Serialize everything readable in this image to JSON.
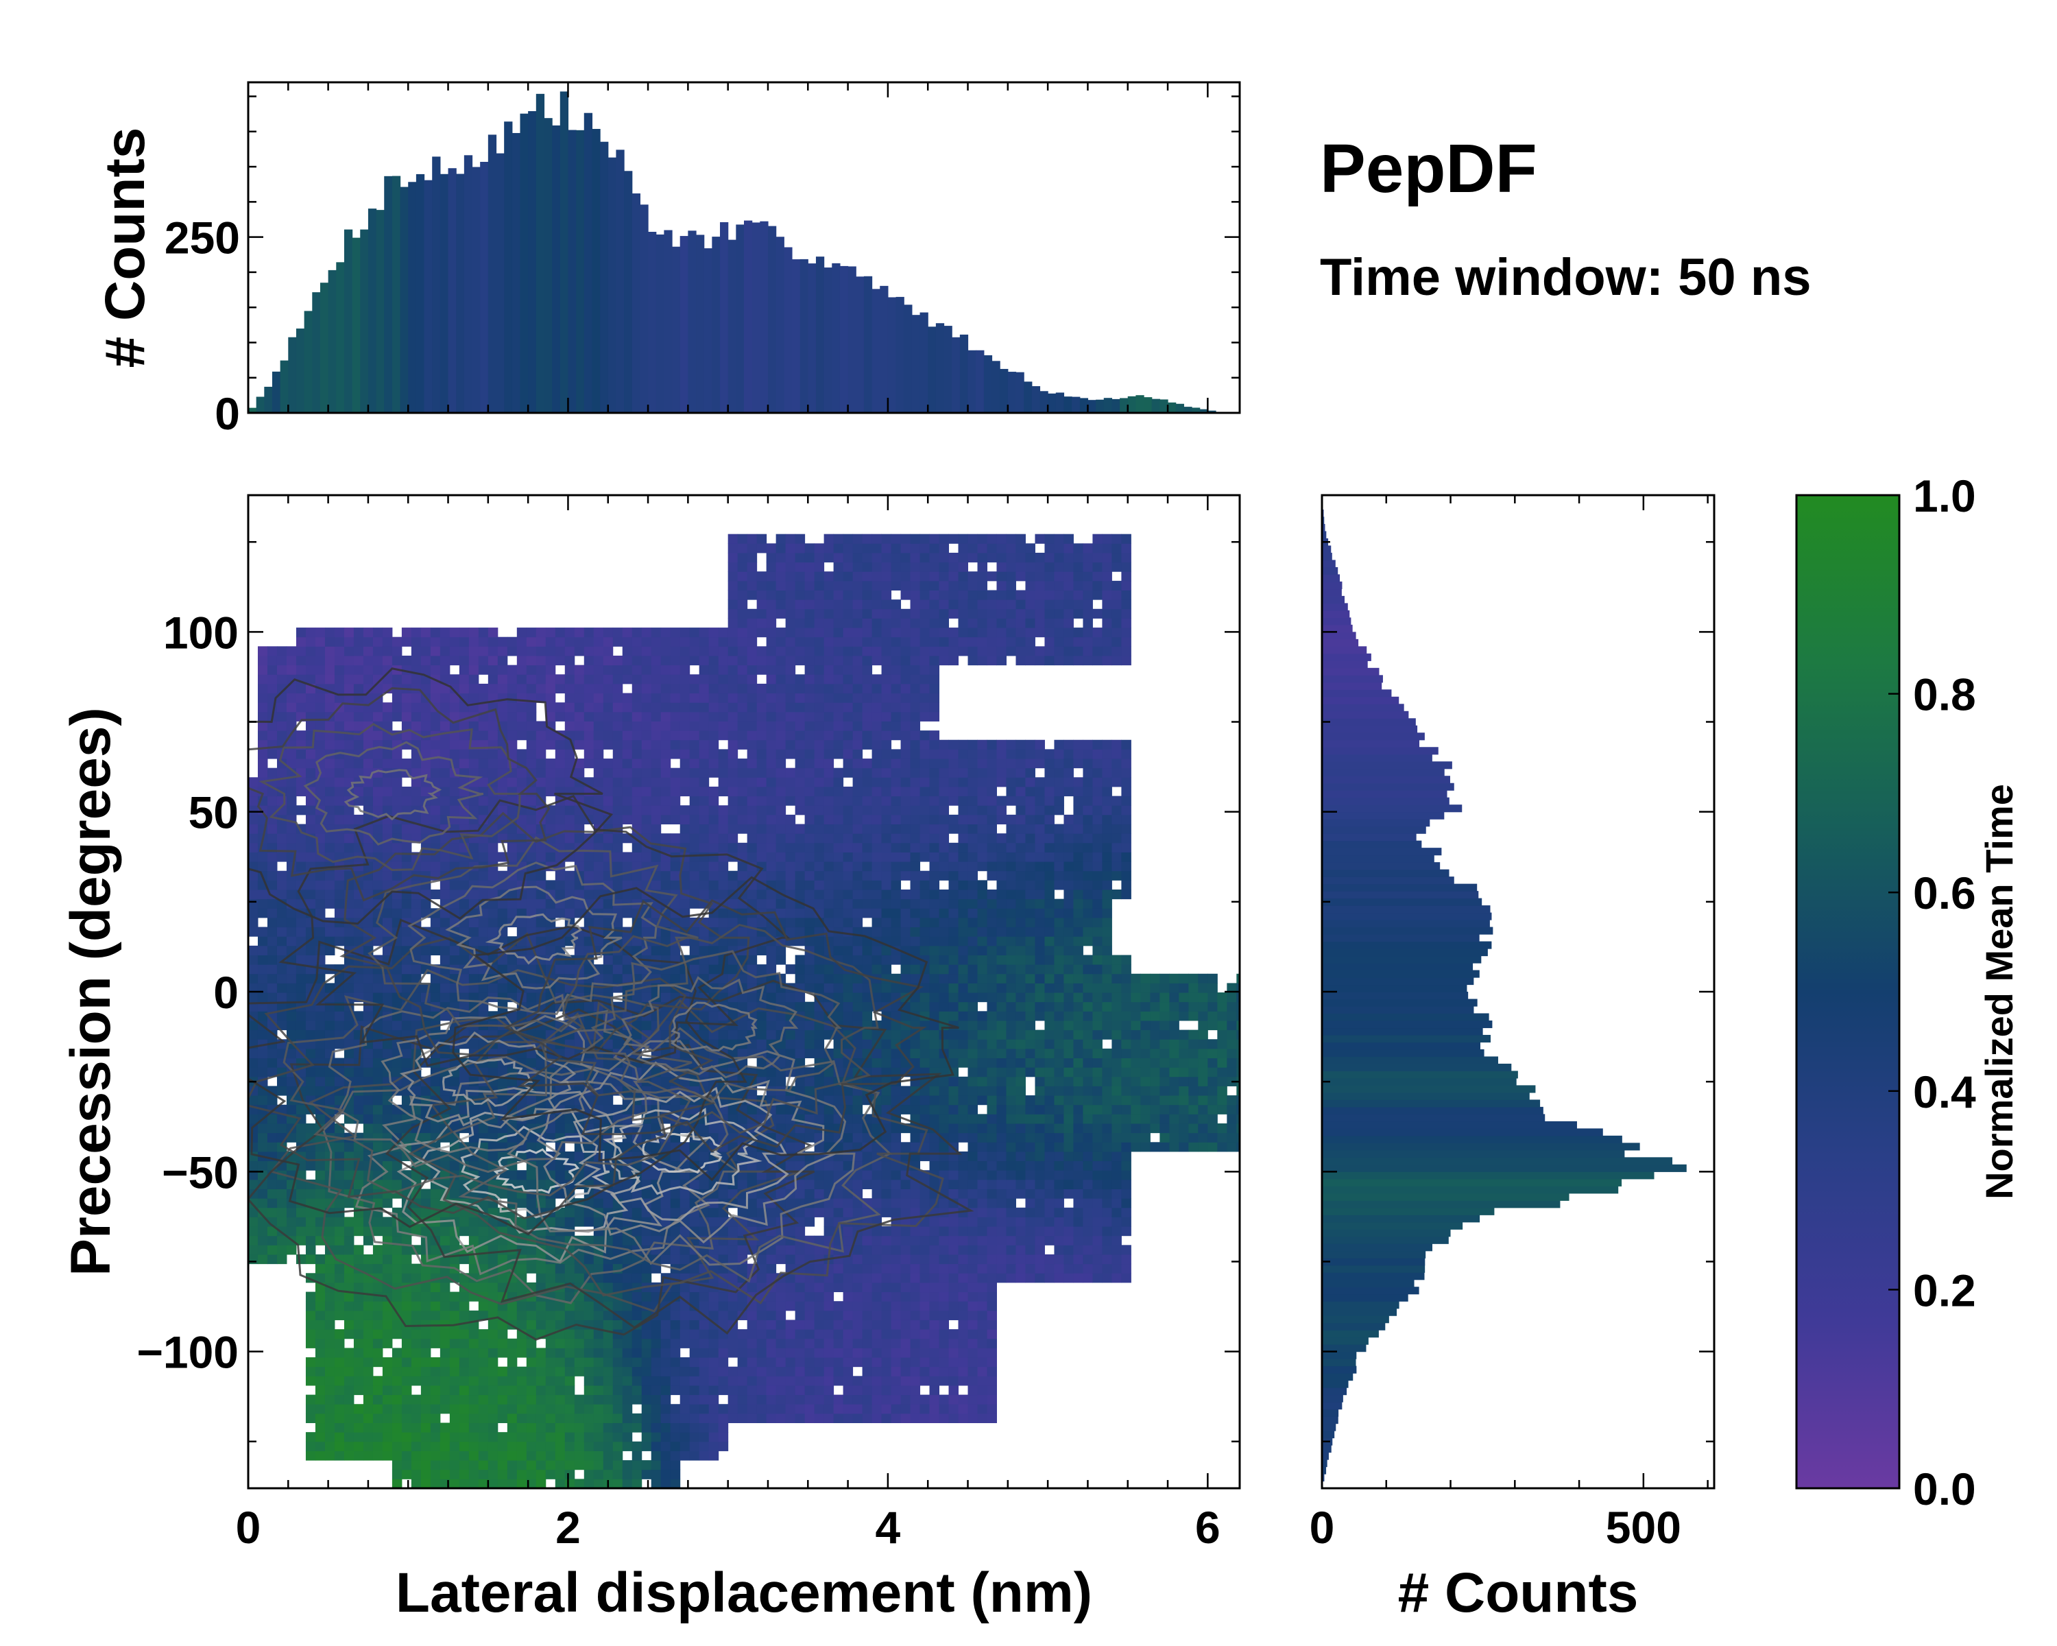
{
  "chart_data": {
    "type": "heatmap",
    "title": "PepDF",
    "subtitle": "Time window: 50 ns",
    "main": {
      "xlabel": "Lateral displacement (nm)",
      "ylabel": "Precession (degrees)",
      "xlim": [
        0,
        6.2
      ],
      "ylim": [
        -138,
        138
      ],
      "xticks": [
        0,
        2,
        4,
        6
      ],
      "xtick_labels": [
        "0",
        "2",
        "4",
        "6"
      ],
      "yticks": [
        -100,
        -50,
        0,
        50,
        100
      ],
      "ytick_labels": [
        "−100",
        "−50",
        "0",
        "50",
        "100"
      ],
      "color_regions": [
        {
          "name": "upper-left purple",
          "x": [
            0.3,
            3.5
          ],
          "y": [
            40,
            100
          ],
          "value": 0.15
        },
        {
          "name": "upper-right arm",
          "x": [
            3.0,
            5.4
          ],
          "y": [
            70,
            125
          ],
          "value": 0.3
        },
        {
          "name": "central band",
          "x": [
            0.0,
            4.5
          ],
          "y": [
            -60,
            40
          ],
          "value": 0.45
        },
        {
          "name": "right arm",
          "x": [
            4.2,
            6.2
          ],
          "y": [
            -40,
            0
          ],
          "value": 0.65
        },
        {
          "name": "lower-left green",
          "x": [
            0.4,
            1.6
          ],
          "y": [
            -125,
            -60
          ],
          "value": 0.9
        },
        {
          "name": "lower-right purple",
          "x": [
            3.5,
            5.3
          ],
          "y": [
            -110,
            -60
          ],
          "value": 0.2
        }
      ],
      "density_peaks": [
        {
          "x": 1.8,
          "y": -50,
          "weight": 1.0
        },
        {
          "x": 2.7,
          "y": -45,
          "weight": 0.95
        },
        {
          "x": 1.5,
          "y": -25,
          "weight": 0.7
        },
        {
          "x": 1.8,
          "y": 15,
          "weight": 0.6
        },
        {
          "x": 0.9,
          "y": 55,
          "weight": 0.45
        },
        {
          "x": 2.9,
          "y": -10,
          "weight": 0.5
        }
      ]
    },
    "top_histogram": {
      "ylabel": "# Counts",
      "ylim": [
        0,
        470
      ],
      "yticks": [
        0,
        250
      ],
      "ytick_labels": [
        "0",
        "250"
      ],
      "bin_width": 0.05,
      "x_anchor": [
        0.0,
        0.1,
        0.3,
        0.6,
        0.9,
        1.1,
        1.3,
        1.5,
        1.7,
        1.8,
        2.0,
        2.2,
        2.4,
        2.6,
        2.8,
        3.0,
        3.2,
        3.5,
        3.8,
        4.0,
        4.3,
        4.6,
        5.0,
        5.3,
        5.6,
        5.9,
        6.1
      ],
      "counts_anchor": [
        0,
        30,
        110,
        240,
        330,
        340,
        350,
        380,
        410,
        435,
        425,
        400,
        325,
        245,
        250,
        255,
        255,
        230,
        200,
        165,
        130,
        85,
        30,
        18,
        25,
        8,
        0
      ],
      "mean_time_anchor": [
        0.7,
        0.55,
        0.6,
        0.62,
        0.58,
        0.45,
        0.4,
        0.4,
        0.48,
        0.5,
        0.52,
        0.48,
        0.42,
        0.35,
        0.35,
        0.35,
        0.35,
        0.37,
        0.38,
        0.4,
        0.42,
        0.4,
        0.45,
        0.5,
        0.68,
        0.6,
        0.6
      ]
    },
    "right_histogram": {
      "xlabel": "# Counts",
      "xlim": [
        0,
        610
      ],
      "xticks": [
        0,
        500
      ],
      "xtick_labels": [
        "0",
        "500"
      ],
      "bin_width": 2,
      "y_anchor": [
        -138,
        -130,
        -115,
        -100,
        -90,
        -80,
        -70,
        -62,
        -57,
        -52,
        -48,
        -44,
        -40,
        -35,
        -30,
        -25,
        -20,
        -10,
        0,
        10,
        20,
        30,
        40,
        45,
        50,
        55,
        60,
        70,
        80,
        90,
        100,
        110,
        120,
        128,
        138
      ],
      "counts_anchor": [
        0,
        10,
        30,
        60,
        110,
        160,
        180,
        260,
        400,
        500,
        550,
        480,
        420,
        370,
        330,
        300,
        280,
        250,
        230,
        250,
        260,
        220,
        170,
        150,
        220,
        200,
        200,
        160,
        120,
        80,
        50,
        35,
        18,
        5,
        0
      ],
      "mean_time_anchor": [
        0.45,
        0.45,
        0.45,
        0.55,
        0.55,
        0.5,
        0.55,
        0.6,
        0.65,
        0.62,
        0.58,
        0.55,
        0.5,
        0.45,
        0.55,
        0.6,
        0.55,
        0.5,
        0.5,
        0.5,
        0.45,
        0.42,
        0.4,
        0.38,
        0.35,
        0.3,
        0.3,
        0.25,
        0.2,
        0.15,
        0.13,
        0.2,
        0.3,
        0.35,
        0.35
      ]
    },
    "colorbar": {
      "label": "Normalized Mean Time",
      "range": [
        0,
        1
      ],
      "ticks": [
        0,
        0.2,
        0.4,
        0.6,
        0.8,
        1.0
      ],
      "tick_labels": [
        "0.0",
        "0.2",
        "0.4",
        "0.6",
        "0.8",
        "1.0"
      ],
      "colors": [
        "#6a3aa2",
        "#403a98",
        "#2a3f88",
        "#143f6f",
        "#175f5a",
        "#1d7a42",
        "#228b22"
      ]
    }
  }
}
